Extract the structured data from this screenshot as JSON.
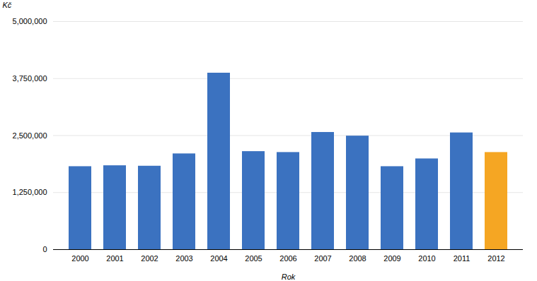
{
  "chart_data": {
    "type": "bar",
    "categories": [
      "2000",
      "2001",
      "2002",
      "2003",
      "2004",
      "2005",
      "2006",
      "2007",
      "2008",
      "2009",
      "2010",
      "2011",
      "2012"
    ],
    "values": [
      1820000,
      1840000,
      1830000,
      2100000,
      3870000,
      2150000,
      2130000,
      2570000,
      2490000,
      1820000,
      1990000,
      2560000,
      2130000
    ],
    "colors": [
      "#3b72c0",
      "#3b72c0",
      "#3b72c0",
      "#3b72c0",
      "#3b72c0",
      "#3b72c0",
      "#3b72c0",
      "#3b72c0",
      "#3b72c0",
      "#3b72c0",
      "#3b72c0",
      "#3b72c0",
      "#f5a623"
    ],
    "xlabel": "Rok",
    "ylabel": "Kč",
    "ylim": [
      0,
      5000000
    ],
    "yticks": [
      0,
      {
        "value": 1250000,
        "label": "1,250,000"
      },
      {
        "value": 2500000,
        "label": "2,500,000"
      },
      {
        "value": 3750000,
        "label": "3,750,000"
      },
      {
        "value": 5000000,
        "label": "5,000,000"
      }
    ],
    "grid": true
  }
}
